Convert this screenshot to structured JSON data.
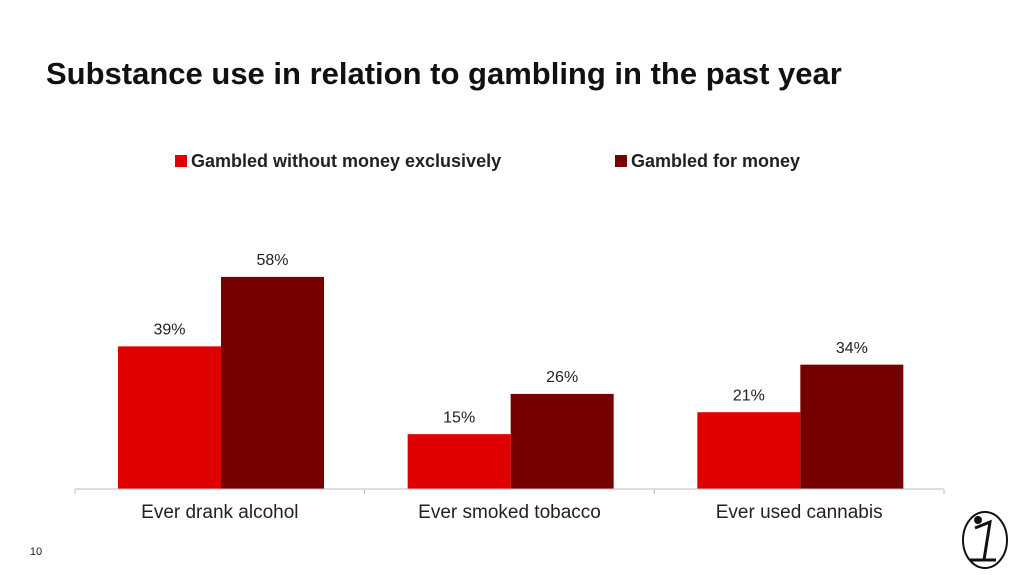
{
  "chart_data": {
    "type": "bar",
    "title": "Substance use in relation to gambling in the past year",
    "categories": [
      "Ever drank alcohol",
      "Ever smoked tobacco",
      "Ever used cannabis"
    ],
    "series": [
      {
        "name": "Gambled without money exclusively",
        "color": "#e00000",
        "values": [
          39,
          15,
          21
        ],
        "value_labels": [
          "39%",
          "15%",
          "21%"
        ]
      },
      {
        "name": "Gambled for money",
        "color": "#760000",
        "values": [
          58,
          26,
          34
        ],
        "value_labels": [
          "58%",
          "26%",
          "34%"
        ]
      }
    ],
    "ylim": [
      0,
      70
    ],
    "legend": "top"
  },
  "slide_number": 10
}
